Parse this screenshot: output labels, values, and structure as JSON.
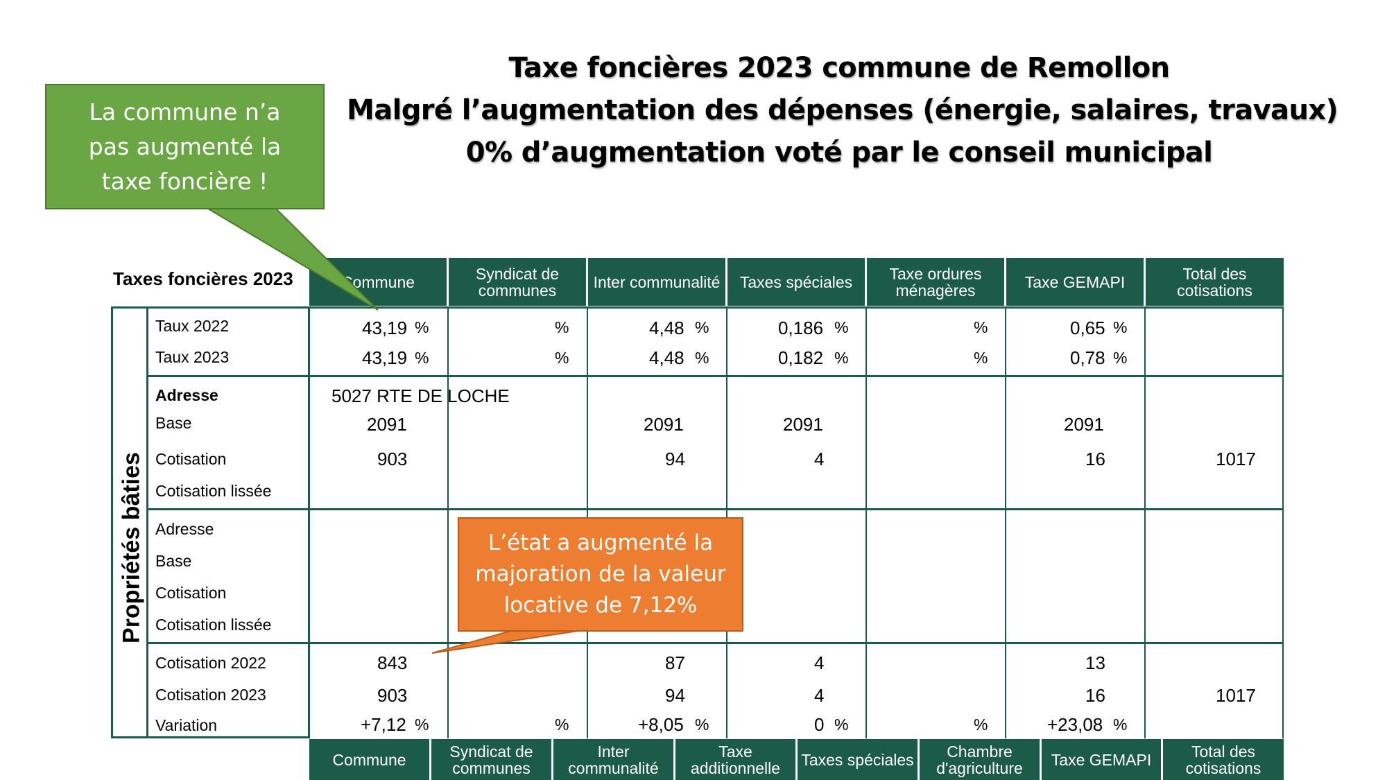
{
  "title": {
    "line1": "Taxe foncières 2023 commune de Remollon",
    "line2": "Malgré l’augmentation des dépenses (énergie, salaires, travaux)",
    "line3": "0% d’augmentation voté par le conseil municipal"
  },
  "callouts": {
    "green": "La commune n’a pas augmenté la taxe foncière !",
    "orange": "L’état a augmenté la majoration de la valeur locative de 7,12%"
  },
  "colors": {
    "header": "#1b5b47",
    "green_callout": "#6aa643",
    "orange_callout": "#ed7d31"
  },
  "table": {
    "caption": "Taxes foncières 2023",
    "side_label": "Propriétés bâties",
    "percent_sign": "%",
    "headers": [
      "Commune",
      "Syndicat de communes",
      "Inter communalité",
      "Taxes spéciales",
      "Taxe ordures ménagères",
      "Taxe GEMAPI",
      "Total des cotisations"
    ],
    "rates": {
      "label_2022": "Taux 2022",
      "label_2023": "Taux 2023",
      "commune_2022": "43,19",
      "commune_2023": "43,19",
      "inter_2022": "4,48",
      "inter_2023": "4,48",
      "speciales_2022": "0,186",
      "speciales_2023": "0,182",
      "gemapi_2022": "0,65",
      "gemapi_2023": "0,78"
    },
    "property1": {
      "adresse_label": "Adresse",
      "adresse": "5027 RTE DE LOCHE",
      "base_label": "Base",
      "cotisation_label": "Cotisation",
      "lissee_label": "Cotisation lissée",
      "base_commune": "2091",
      "base_inter": "2091",
      "base_speciales": "2091",
      "base_gemapi": "2091",
      "cot_commune": "903",
      "cot_inter": "94",
      "cot_speciales": "4",
      "cot_gemapi": "16",
      "cot_total": "1017"
    },
    "property2": {
      "adresse_label": "Adresse",
      "base_label": "Base",
      "cotisation_label": "Cotisation",
      "lissee_label": "Cotisation lissée"
    },
    "comparison": {
      "label_2022": "Cotisation 2022",
      "label_2023": "Cotisation 2023",
      "label_var": "Variation",
      "c2022_commune": "843",
      "c2022_inter": "87",
      "c2022_speciales": "4",
      "c2022_gemapi": "13",
      "c2023_commune": "903",
      "c2023_inter": "94",
      "c2023_speciales": "4",
      "c2023_gemapi": "16",
      "c2023_total": "1017",
      "var_commune": "+7,12",
      "var_inter": "+8,05",
      "var_speciales": "0",
      "var_gemapi": "+23,08"
    },
    "footer_headers": [
      "Commune",
      "Syndicat de communes",
      "Inter communalité",
      "Taxe additionnelle",
      "Taxes spéciales",
      "Chambre d'agriculture",
      "Taxe GEMAPI",
      "Total des cotisations"
    ]
  }
}
